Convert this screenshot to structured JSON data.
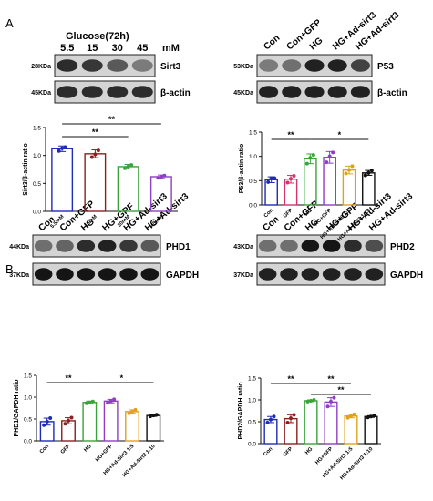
{
  "figure": {
    "panel_a_label": "A",
    "panel_b_label": "B"
  },
  "blots": {
    "glucose": {
      "treatment_title": "Glucose(72h)",
      "doses": [
        "5.5",
        "15",
        "30",
        "45"
      ],
      "dose_unit": "mM",
      "rows": [
        {
          "size": "28KDa",
          "protein": "Sirt3",
          "intensity": [
            0.85,
            0.8,
            0.65,
            0.5
          ]
        },
        {
          "size": "45KDa",
          "protein": "β-actin",
          "intensity": [
            0.85,
            0.85,
            0.85,
            0.85
          ]
        }
      ]
    },
    "p53": {
      "lanes": [
        "Con",
        "Con+GFP",
        "HG",
        "HG+Ad-sirt3",
        "HG+Ad-sirt3"
      ],
      "rows": [
        {
          "size": "53KDa",
          "protein": "P53",
          "intensity": [
            0.5,
            0.55,
            0.9,
            0.9,
            0.75
          ]
        },
        {
          "size": "45KDa",
          "protein": "β-actin",
          "intensity": [
            0.9,
            0.9,
            0.9,
            0.9,
            0.9
          ]
        }
      ]
    },
    "phd1": {
      "lanes": [
        "Con",
        "Con+GFP",
        "HG",
        "HG+GPF",
        "HG+Ad-sirt3",
        "HG+Ad-sirt3"
      ],
      "rows": [
        {
          "size": "44KDa",
          "protein": "PHD1",
          "intensity": [
            0.55,
            0.6,
            0.85,
            0.9,
            0.8,
            0.65
          ]
        },
        {
          "size": "37KDa",
          "protein": "GAPDH",
          "intensity": [
            0.95,
            0.95,
            0.95,
            0.95,
            0.95,
            0.95
          ]
        }
      ]
    },
    "phd2": {
      "lanes": [
        "Con",
        "Con+GFP",
        "HG",
        "HG+GPF",
        "HG+Ad-sirt3",
        "HG+Ad-sirt3"
      ],
      "rows": [
        {
          "size": "43KDa",
          "protein": "PHD2",
          "intensity": [
            0.55,
            0.55,
            0.95,
            0.95,
            0.85,
            0.7
          ]
        },
        {
          "size": "37KDa",
          "protein": "GAPDH",
          "intensity": [
            0.9,
            0.9,
            0.9,
            0.9,
            0.9,
            0.9
          ]
        }
      ]
    }
  },
  "chart_data": [
    {
      "id": "sirt3",
      "type": "bar",
      "ylabel": "Sirt3/β-actin ratio",
      "categories": [
        "5.5mM",
        "15mM",
        "30mM",
        "45mM"
      ],
      "values": [
        1.12,
        1.03,
        0.8,
        0.62
      ],
      "errors": [
        0.05,
        0.07,
        0.04,
        0.03
      ],
      "points": [
        [
          1.08,
          1.13,
          1.15
        ],
        [
          0.97,
          1.02,
          1.09
        ],
        [
          0.77,
          0.8,
          0.83
        ],
        [
          0.6,
          0.62,
          0.64
        ]
      ],
      "colors": [
        "#1f2bb5",
        "#8b2020",
        "#3aa33a",
        "#8e3fc4"
      ],
      "ylim": [
        0,
        1.5
      ],
      "yticks": [
        "0.0",
        "0.5",
        "1.0",
        "1.5"
      ],
      "significance": [
        {
          "from": 0,
          "to": 3,
          "label": "**"
        },
        {
          "from": 0,
          "to": 2,
          "label": "**"
        }
      ]
    },
    {
      "id": "p53",
      "type": "bar",
      "ylabel": "P53/β-actin ratio",
      "categories": [
        "Con",
        "GFP",
        "HG",
        "HG+GFP",
        "HG+Ad-Sirt3 1:5",
        "HG+Ad-Sirt3 1:10"
      ],
      "values": [
        0.52,
        0.53,
        0.95,
        0.98,
        0.72,
        0.66
      ],
      "errors": [
        0.06,
        0.08,
        0.1,
        0.12,
        0.08,
        0.05
      ],
      "points": [
        [
          0.47,
          0.55,
          0.55
        ],
        [
          0.46,
          0.54,
          0.6
        ],
        [
          0.85,
          0.97,
          1.03
        ],
        [
          0.88,
          1.0,
          1.08
        ],
        [
          0.65,
          0.72,
          0.8
        ],
        [
          0.61,
          0.66,
          0.71
        ]
      ],
      "colors": [
        "#1f2bb5",
        "#d6336c",
        "#3aa33a",
        "#8e3fc4",
        "#e0a21a",
        "#111111"
      ],
      "ylim": [
        0,
        1.5
      ],
      "yticks": [
        "0.0",
        "0.5",
        "1.0",
        "1.5"
      ],
      "significance": [
        {
          "from": 0,
          "to": 2,
          "label": "**"
        },
        {
          "from": 2,
          "to": 5,
          "label": "*"
        }
      ]
    },
    {
      "id": "phd1",
      "type": "bar",
      "ylabel": "PHD1/GAPDH ratio",
      "categories": [
        "Con",
        "GFP",
        "HG",
        "HG+GFP",
        "HG+Ad-Sirt3 1:5",
        "HG+Ad-Sirt3 1:10"
      ],
      "values": [
        0.44,
        0.46,
        0.88,
        0.91,
        0.67,
        0.58
      ],
      "errors": [
        0.08,
        0.07,
        0.03,
        0.04,
        0.04,
        0.02
      ],
      "points": [
        [
          0.36,
          0.44,
          0.52
        ],
        [
          0.39,
          0.46,
          0.53
        ],
        [
          0.86,
          0.88,
          0.9
        ],
        [
          0.87,
          0.91,
          0.95
        ],
        [
          0.63,
          0.67,
          0.71
        ],
        [
          0.56,
          0.58,
          0.6
        ]
      ],
      "colors": [
        "#1f2bb5",
        "#8b2020",
        "#3aa33a",
        "#8e3fc4",
        "#e0a21a",
        "#111111"
      ],
      "ylim": [
        0,
        1.5
      ],
      "yticks": [
        "0.0",
        "0.5",
        "1.0",
        "1.5"
      ],
      "significance": [
        {
          "from": 0,
          "to": 2,
          "label": "**"
        },
        {
          "from": 2,
          "to": 5,
          "label": "*"
        }
      ]
    },
    {
      "id": "phd2",
      "type": "bar",
      "ylabel": "PHD2/GAPDH ratio",
      "categories": [
        "Con",
        "GFP",
        "HG",
        "HG+GFP",
        "HG+Ad-Sirt3 1:5",
        "HG+Ad-Sirt3 1:10"
      ],
      "values": [
        0.55,
        0.57,
        0.98,
        0.95,
        0.63,
        0.62
      ],
      "errors": [
        0.07,
        0.09,
        0.02,
        0.1,
        0.04,
        0.02
      ],
      "points": [
        [
          0.48,
          0.55,
          0.62
        ],
        [
          0.48,
          0.58,
          0.66
        ],
        [
          0.96,
          0.98,
          1.0
        ],
        [
          0.85,
          0.96,
          1.05
        ],
        [
          0.59,
          0.63,
          0.67
        ],
        [
          0.6,
          0.62,
          0.64
        ]
      ],
      "colors": [
        "#1f2bb5",
        "#8b2020",
        "#3aa33a",
        "#8e3fc4",
        "#e0a21a",
        "#111111"
      ],
      "ylim": [
        0,
        1.5
      ],
      "yticks": [
        "0.0",
        "0.5",
        "1.0",
        "1.5"
      ],
      "significance": [
        {
          "from": 0,
          "to": 2,
          "label": "**"
        },
        {
          "from": 2,
          "to": 4,
          "label": "**"
        },
        {
          "from": 2,
          "to": 5,
          "label": "**"
        }
      ]
    }
  ]
}
